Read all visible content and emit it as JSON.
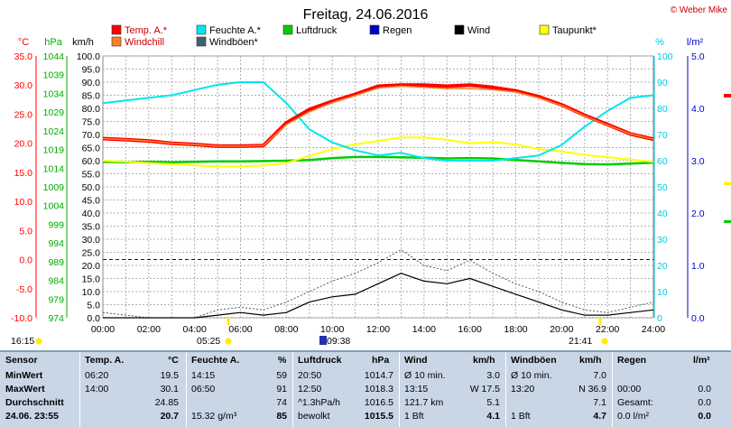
{
  "page": {
    "title": "Freitag, 24.06.2016",
    "copyright": "© Weber Mike"
  },
  "legend": [
    {
      "label": "Temp. A.*",
      "color": "#ff0000"
    },
    {
      "label": "Feuchte A.*",
      "color": "#00e5ee"
    },
    {
      "label": "Luftdruck",
      "color": "#00cc00"
    },
    {
      "label": "Regen",
      "color": "#0000cc"
    },
    {
      "label": "Wind",
      "color": "#000000"
    },
    {
      "label": "Taupunkt*",
      "color": "#ffff00"
    },
    {
      "label": "Windchill",
      "color": "#ff7f27"
    },
    {
      "label": "Windböen*",
      "color": "#406070"
    }
  ],
  "axes": {
    "temp": {
      "unit": "°C",
      "ticks": [
        "35.0",
        "30.0",
        "25.0",
        "20.0",
        "15.0",
        "10.0",
        "5.0",
        "0.0",
        "-5.0",
        "-10.0"
      ],
      "color": "#ff0000"
    },
    "pressure": {
      "unit": "hPa",
      "ticks": [
        "1044",
        "1039",
        "1034",
        "1029",
        "1024",
        "1019",
        "1014",
        "1009",
        "1004",
        "999",
        "994",
        "989",
        "984",
        "979",
        "974"
      ],
      "color": "#00aa00"
    },
    "wind": {
      "unit": "km/h",
      "ticks": [
        "100.0",
        "95.0",
        "90.0",
        "85.0",
        "80.0",
        "75.0",
        "70.0",
        "65.0",
        "60.0",
        "55.0",
        "50.0",
        "45.0",
        "40.0",
        "35.0",
        "30.0",
        "25.0",
        "20.0",
        "15.0",
        "10.0",
        "5.0",
        "0.0"
      ],
      "color": "#000000"
    },
    "humidity": {
      "unit": "%",
      "ticks": [
        "100",
        "90",
        "80",
        "70",
        "60",
        "50",
        "40",
        "30",
        "20",
        "10",
        "0"
      ],
      "color": "#00ccdd"
    },
    "rain": {
      "unit": "l/m²",
      "ticks": [
        "5.0",
        "4.0",
        "3.0",
        "2.0",
        "1.0",
        "0.0"
      ],
      "color": "#0000cc"
    },
    "time": {
      "ticks": [
        "00:00",
        "02:00",
        "04:00",
        "06:00",
        "08:00",
        "10:00",
        "12:00",
        "14:00",
        "16:00",
        "18:00",
        "20:00",
        "22:00",
        "24:00"
      ]
    }
  },
  "sun_times": [
    {
      "label": "16:15"
    },
    {
      "label": "05:25"
    },
    {
      "label": "09:38"
    },
    {
      "label": "21:41"
    }
  ],
  "chart_data": {
    "type": "line",
    "title": "Freitag, 24.06.2016",
    "x_hours": [
      0,
      1,
      2,
      3,
      4,
      5,
      6,
      7,
      8,
      9,
      10,
      11,
      12,
      13,
      14,
      15,
      16,
      17,
      18,
      19,
      20,
      21,
      22,
      23,
      24
    ],
    "series": [
      {
        "name": "Temp. A.*",
        "color": "#ff0000",
        "axis": "temp",
        "values": [
          20.8,
          20.6,
          20.4,
          20.0,
          19.8,
          19.5,
          19.5,
          19.6,
          23.5,
          25.8,
          27.2,
          28.4,
          29.8,
          30.0,
          30.0,
          29.8,
          30.0,
          29.6,
          29.0,
          28.0,
          26.6,
          24.8,
          23.2,
          21.6,
          20.7
        ]
      },
      {
        "name": "Windchill",
        "color": "#ff7f27",
        "axis": "temp",
        "values": [
          20.8,
          20.6,
          20.4,
          20.0,
          19.8,
          19.5,
          19.5,
          19.6,
          23.2,
          25.4,
          27.0,
          28.2,
          29.5,
          29.8,
          29.6,
          29.4,
          29.4,
          29.2,
          28.8,
          27.8,
          26.5,
          24.7,
          23.1,
          21.6,
          20.7
        ]
      },
      {
        "name": "Taupunkt*",
        "color": "#ffff00",
        "axis": "temp",
        "values": [
          17.0,
          16.8,
          16.6,
          16.4,
          16.2,
          16.0,
          16.0,
          16.2,
          16.6,
          17.8,
          19.0,
          19.8,
          20.4,
          21.0,
          21.0,
          20.6,
          20.0,
          20.2,
          19.8,
          19.0,
          18.6,
          18.0,
          17.6,
          17.2,
          16.8
        ]
      },
      {
        "name": "Feuchte A.*",
        "color": "#00e5ee",
        "axis": "humidity",
        "values": [
          82,
          83,
          84,
          85,
          87,
          89,
          90,
          90,
          82,
          72,
          67,
          64,
          62,
          63,
          61,
          60,
          60,
          60,
          61,
          62,
          66,
          73,
          79,
          84,
          85
        ]
      },
      {
        "name": "Luftdruck",
        "color": "#00cc00",
        "axis": "pressure",
        "values": [
          1015.7,
          1015.6,
          1015.7,
          1015.6,
          1015.7,
          1015.8,
          1015.8,
          1015.9,
          1016.0,
          1016.2,
          1016.7,
          1017.0,
          1017.0,
          1016.9,
          1016.8,
          1016.6,
          1016.7,
          1016.6,
          1016.2,
          1015.8,
          1015.4,
          1015.1,
          1015.0,
          1015.2,
          1015.5
        ]
      },
      {
        "name": "Wind",
        "color": "#000000",
        "axis": "wind",
        "values": [
          0,
          0,
          0,
          0,
          0,
          1,
          2,
          1,
          2,
          6,
          8,
          9,
          13,
          17,
          14,
          13,
          15,
          12,
          9,
          6,
          3,
          1,
          1,
          2,
          3
        ]
      },
      {
        "name": "Windböen*",
        "color": "#406070",
        "axis": "wind",
        "values": [
          2,
          1,
          0,
          0,
          0,
          3,
          4,
          3,
          6,
          10,
          14,
          17,
          21,
          26,
          20,
          18,
          22,
          17,
          13,
          10,
          6,
          3,
          2,
          4,
          6
        ]
      }
    ],
    "reference_lines": [
      {
        "axis": "temp",
        "value": 0.0,
        "color": "#0000cc",
        "style": "dashed"
      }
    ],
    "xlim": [
      0,
      24
    ],
    "temp_range": [
      -10,
      35
    ],
    "humidity_range": [
      0,
      100
    ],
    "pressure_range": [
      974,
      1044
    ],
    "wind_range": [
      0,
      100
    ],
    "rain_range": [
      0,
      5
    ]
  },
  "table": {
    "headers": {
      "sensor": "Sensor",
      "temp": "Temp. A.",
      "temp_unit": "°C",
      "hum": "Feuchte A.",
      "hum_unit": "%",
      "press": "Luftdruck",
      "press_unit": "hPa",
      "wind": "Wind",
      "wind_unit": "km/h",
      "gust": "Windböen",
      "gust_unit": "km/h",
      "rain": "Regen",
      "rain_unit": "l/m²"
    },
    "rows": [
      {
        "label": "MinWert",
        "temp_time": "06:20",
        "temp": "19.5",
        "hum_time": "14:15",
        "hum": "59",
        "press_time": "20:50",
        "press": "1014.7",
        "wind_time": "Ø 10 min.",
        "wind": "3.0",
        "gust_time": "Ø 10 min.",
        "gust": "7.0",
        "rain_time": "",
        "rain": ""
      },
      {
        "label": "MaxWert",
        "temp_time": "14:00",
        "temp": "30.1",
        "hum_time": "06:50",
        "hum": "91",
        "press_time": "12:50",
        "press": "1018.3",
        "wind_time": "13:15",
        "wind": "W 17.5",
        "gust_time": "13:20",
        "gust": "N 36.9",
        "rain_time": "00:00",
        "rain": "0.0"
      },
      {
        "label": "Durchschnitt",
        "temp_time": "",
        "temp": "24.85",
        "hum_time": "",
        "hum": "74",
        "press_time": "^1.3hPa/h",
        "press": "1016.5",
        "wind_time": "121.7 km",
        "wind": "5.1",
        "gust_time": "",
        "gust": "7.1",
        "rain_time": "Gesamt:",
        "rain": "0.0"
      },
      {
        "label": "24.06. 23:55",
        "temp_time": "",
        "temp": "20.7",
        "hum_time": "15.32 g/m³",
        "hum": "85",
        "press_time": "bewolkt",
        "press": "1015.5",
        "wind_time": "1 Bft",
        "wind": "4.1",
        "gust_time": "1 Bft",
        "gust": "4.7",
        "rain_time": "0.0 l/m²",
        "rain": "0.0"
      }
    ]
  }
}
